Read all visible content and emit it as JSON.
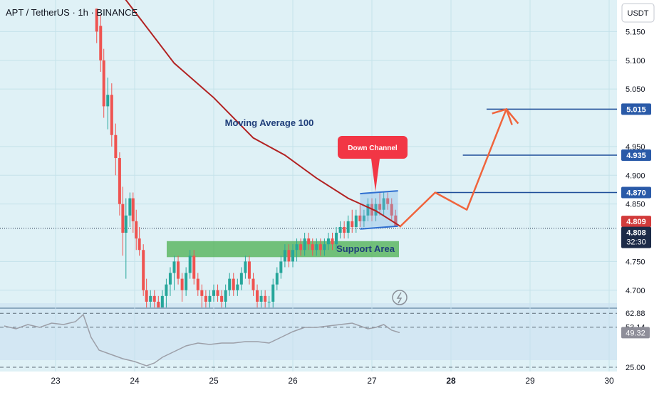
{
  "header": {
    "title": "APT / TetherUS · 1h · BINANCE",
    "currency_button": "USDT"
  },
  "colors": {
    "background": "#dff1f6",
    "grid": "#c5e2ea",
    "up": "#26a69a",
    "down": "#ef5350",
    "moving_average": "#b22222",
    "level": "#1f4e99",
    "support": "#4caf50",
    "projection": "#f0643c",
    "rsi": "#9c9fa8",
    "rsi_band": "#c9dff0"
  },
  "chart_data": [
    {
      "type": "candlestick",
      "symbol": "APT / TetherUS",
      "interval": "1h",
      "exchange": "BINANCE",
      "x_axis": {
        "ticks": [
          "23",
          "24",
          "25",
          "26",
          "27",
          "28",
          "29",
          "30"
        ],
        "bold_tick": "28"
      },
      "y_axis": {
        "ticks": [
          5.15,
          5.1,
          5.05,
          4.95,
          4.9,
          4.85,
          4.75,
          4.7
        ],
        "range": [
          4.67,
          5.205
        ]
      },
      "moving_average": {
        "label": "Moving Average 100",
        "points": [
          [
            23.75,
            5.23
          ],
          [
            24.5,
            5.095
          ],
          [
            25.0,
            5.035
          ],
          [
            25.5,
            4.965
          ],
          [
            25.9,
            4.935
          ],
          [
            26.3,
            4.895
          ],
          [
            26.7,
            4.86
          ],
          [
            27.05,
            4.838
          ],
          [
            27.35,
            4.812
          ]
        ]
      },
      "candles": [
        [
          23.52,
          5.19,
          5.19,
          5.13,
          5.15
        ],
        [
          23.57,
          5.16,
          5.18,
          5.08,
          5.1
        ],
        [
          23.61,
          5.1,
          5.12,
          5.0,
          5.02
        ],
        [
          23.66,
          5.02,
          5.07,
          4.98,
          5.04
        ],
        [
          23.71,
          5.04,
          5.06,
          4.95,
          4.97
        ],
        [
          23.76,
          4.97,
          4.99,
          4.9,
          4.93
        ],
        [
          23.81,
          4.93,
          4.94,
          4.83,
          4.85
        ],
        [
          23.85,
          4.85,
          4.88,
          4.76,
          4.8
        ],
        [
          23.89,
          4.8,
          4.86,
          4.72,
          4.83
        ],
        [
          23.94,
          4.83,
          4.87,
          4.81,
          4.86
        ],
        [
          23.98,
          4.86,
          4.87,
          4.8,
          4.82
        ],
        [
          24.02,
          4.82,
          4.84,
          4.77,
          4.79
        ],
        [
          24.06,
          4.79,
          4.81,
          4.76,
          4.77
        ],
        [
          24.11,
          4.77,
          4.78,
          4.69,
          4.7
        ],
        [
          24.15,
          4.7,
          4.72,
          4.67,
          4.68
        ],
        [
          24.2,
          4.68,
          4.7,
          4.66,
          4.69
        ],
        [
          24.25,
          4.69,
          4.7,
          4.67,
          4.68
        ],
        [
          24.3,
          4.68,
          4.69,
          4.66,
          4.67
        ],
        [
          24.35,
          4.67,
          4.7,
          4.66,
          4.69
        ],
        [
          24.4,
          4.69,
          4.72,
          4.67,
          4.71
        ],
        [
          24.45,
          4.71,
          4.74,
          4.69,
          4.73
        ],
        [
          24.5,
          4.73,
          4.76,
          4.7,
          4.75
        ],
        [
          24.55,
          4.75,
          4.76,
          4.71,
          4.72
        ],
        [
          24.6,
          4.72,
          4.73,
          4.68,
          4.7
        ],
        [
          24.65,
          4.7,
          4.74,
          4.69,
          4.73
        ],
        [
          24.7,
          4.73,
          4.77,
          4.72,
          4.76
        ],
        [
          24.75,
          4.76,
          4.77,
          4.71,
          4.72
        ],
        [
          24.8,
          4.72,
          4.73,
          4.69,
          4.7
        ],
        [
          24.85,
          4.7,
          4.71,
          4.67,
          4.69
        ],
        [
          24.9,
          4.69,
          4.7,
          4.67,
          4.68
        ],
        [
          24.95,
          4.68,
          4.7,
          4.67,
          4.69
        ],
        [
          25.0,
          4.69,
          4.71,
          4.68,
          4.7
        ],
        [
          25.05,
          4.7,
          4.71,
          4.68,
          4.69
        ],
        [
          25.1,
          4.69,
          4.7,
          4.67,
          4.68
        ],
        [
          25.15,
          4.68,
          4.71,
          4.67,
          4.7
        ],
        [
          25.2,
          4.7,
          4.73,
          4.69,
          4.72
        ],
        [
          25.25,
          4.72,
          4.73,
          4.69,
          4.7
        ],
        [
          25.3,
          4.7,
          4.72,
          4.69,
          4.71
        ],
        [
          25.35,
          4.71,
          4.74,
          4.7,
          4.73
        ],
        [
          25.4,
          4.73,
          4.76,
          4.72,
          4.75
        ],
        [
          25.45,
          4.75,
          4.76,
          4.71,
          4.72
        ],
        [
          25.5,
          4.72,
          4.73,
          4.69,
          4.7
        ],
        [
          25.55,
          4.7,
          4.71,
          4.67,
          4.68
        ],
        [
          25.6,
          4.68,
          4.7,
          4.67,
          4.69
        ],
        [
          25.65,
          4.69,
          4.7,
          4.67,
          4.68
        ],
        [
          25.7,
          4.68,
          4.69,
          4.67,
          4.68
        ],
        [
          25.75,
          4.68,
          4.72,
          4.67,
          4.71
        ],
        [
          25.8,
          4.71,
          4.74,
          4.7,
          4.73
        ],
        [
          25.85,
          4.73,
          4.76,
          4.72,
          4.75
        ],
        [
          25.9,
          4.75,
          4.78,
          4.74,
          4.77
        ],
        [
          25.95,
          4.77,
          4.78,
          4.74,
          4.75
        ],
        [
          26.0,
          4.75,
          4.78,
          4.74,
          4.77
        ],
        [
          26.05,
          4.77,
          4.79,
          4.75,
          4.78
        ],
        [
          26.1,
          4.78,
          4.79,
          4.76,
          4.77
        ],
        [
          26.15,
          4.77,
          4.8,
          4.76,
          4.79
        ],
        [
          26.2,
          4.79,
          4.8,
          4.77,
          4.78
        ],
        [
          26.25,
          4.78,
          4.79,
          4.76,
          4.77
        ],
        [
          26.3,
          4.77,
          4.79,
          4.76,
          4.78
        ],
        [
          26.35,
          4.78,
          4.79,
          4.76,
          4.77
        ],
        [
          26.4,
          4.77,
          4.79,
          4.76,
          4.78
        ],
        [
          26.45,
          4.78,
          4.8,
          4.77,
          4.79
        ],
        [
          26.5,
          4.79,
          4.8,
          4.77,
          4.78
        ],
        [
          26.55,
          4.78,
          4.81,
          4.77,
          4.8
        ],
        [
          26.6,
          4.8,
          4.82,
          4.79,
          4.81
        ],
        [
          26.65,
          4.81,
          4.82,
          4.79,
          4.8
        ],
        [
          26.7,
          4.8,
          4.83,
          4.79,
          4.82
        ],
        [
          26.75,
          4.82,
          4.84,
          4.8,
          4.81
        ],
        [
          26.8,
          4.81,
          4.84,
          4.8,
          4.83
        ],
        [
          26.85,
          4.83,
          4.85,
          4.81,
          4.82
        ],
        [
          26.9,
          4.82,
          4.84,
          4.81,
          4.83
        ],
        [
          26.95,
          4.83,
          4.86,
          4.82,
          4.85
        ],
        [
          27.0,
          4.85,
          4.86,
          4.82,
          4.83
        ],
        [
          27.05,
          4.83,
          4.86,
          4.82,
          4.85
        ],
        [
          27.1,
          4.85,
          4.87,
          4.83,
          4.84
        ],
        [
          27.15,
          4.84,
          4.87,
          4.83,
          4.86
        ],
        [
          27.2,
          4.86,
          4.87,
          4.84,
          4.85
        ],
        [
          27.25,
          4.85,
          4.86,
          4.82,
          4.83
        ],
        [
          27.3,
          4.83,
          4.84,
          4.81,
          4.81
        ]
      ],
      "annotations": {
        "ma_label": "Moving Average 100",
        "down_channel": "Down Channel",
        "support_area": "Support Area",
        "support_range": [
          4.765,
          4.778
        ],
        "channel_upper": [
          [
            26.85,
            4.868
          ],
          [
            27.33,
            4.873
          ]
        ],
        "channel_lower": [
          [
            26.85,
            4.8065
          ],
          [
            27.33,
            4.8115
          ]
        ],
        "projection": [
          [
            27.35,
            4.81
          ],
          [
            27.8,
            4.87
          ],
          [
            28.2,
            4.84
          ],
          [
            28.7,
            5.015
          ],
          [
            28.85,
            4.99
          ]
        ],
        "levels": [
          {
            "value": 5.015,
            "start": 28.45
          },
          {
            "value": 4.935,
            "start": 28.15
          },
          {
            "value": 4.87,
            "start": 27.8
          }
        ]
      },
      "price_labels": {
        "levels": [
          "5.015",
          "4.935",
          "4.870"
        ],
        "last_price": "4.809",
        "current_price": "4.808",
        "countdown": "32:30"
      }
    },
    {
      "type": "line",
      "name": "RSI",
      "y_ticks": [
        "62.88",
        "53.14",
        "25.00"
      ],
      "last_value": "49.32",
      "range": [
        22,
        66
      ],
      "band": [
        30,
        70
      ],
      "values": [
        [
          22.35,
          54
        ],
        [
          22.5,
          52
        ],
        [
          22.65,
          55
        ],
        [
          22.8,
          53
        ],
        [
          22.95,
          56
        ],
        [
          23.1,
          55
        ],
        [
          23.25,
          57
        ],
        [
          23.35,
          62
        ],
        [
          23.45,
          46
        ],
        [
          23.55,
          37
        ],
        [
          23.7,
          34
        ],
        [
          23.85,
          31
        ],
        [
          24.0,
          29
        ],
        [
          24.15,
          26
        ],
        [
          24.25,
          28
        ],
        [
          24.35,
          32
        ],
        [
          24.5,
          36
        ],
        [
          24.65,
          40
        ],
        [
          24.8,
          42
        ],
        [
          24.95,
          41
        ],
        [
          25.1,
          42
        ],
        [
          25.25,
          42
        ],
        [
          25.4,
          43
        ],
        [
          25.55,
          43
        ],
        [
          25.7,
          42
        ],
        [
          25.85,
          46
        ],
        [
          26.0,
          50
        ],
        [
          26.15,
          53
        ],
        [
          26.3,
          53
        ],
        [
          26.45,
          54
        ],
        [
          26.6,
          55
        ],
        [
          26.75,
          56
        ],
        [
          26.85,
          54
        ],
        [
          26.95,
          52
        ],
        [
          27.05,
          53
        ],
        [
          27.15,
          55
        ],
        [
          27.25,
          51
        ],
        [
          27.35,
          49.3
        ]
      ]
    }
  ]
}
